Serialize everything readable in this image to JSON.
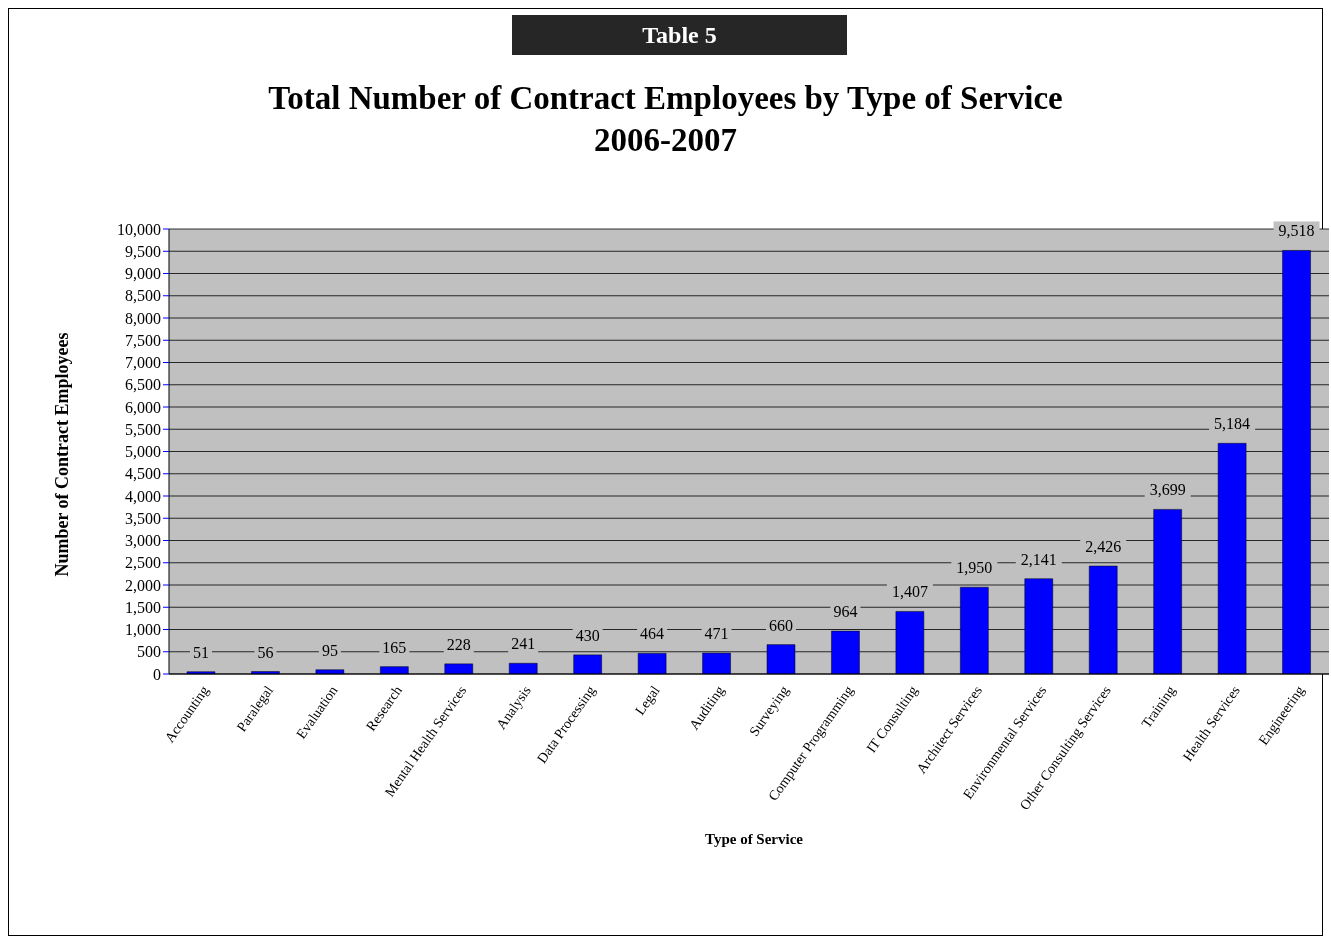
{
  "chart_data": {
    "type": "bar",
    "title": "Total Number of Contract Employees by Type of Service",
    "subtitle": "2006-2007",
    "annotations": [
      "Table 5"
    ],
    "xlabel": "Type of Service",
    "ylabel": "Number of Contract Employees",
    "categories": [
      "Accounting",
      "Paralegal",
      "Evaluation",
      "Research",
      "Mental Health Services",
      "Analysis",
      "Data Processing",
      "Legal",
      "Auditing",
      "Surveying",
      "Computer Programming",
      "IT Consulting",
      "Architect Services",
      "Environmental Services",
      "Other Consulting Services",
      "Training",
      "Health Services",
      "Engineering"
    ],
    "values": [
      51,
      56,
      95,
      165,
      228,
      241,
      430,
      464,
      471,
      660,
      964,
      1407,
      1950,
      2141,
      2426,
      3699,
      5184,
      9518
    ],
    "color": "#0000ff",
    "ylim": [
      0,
      10000
    ],
    "yticks": [
      {
        "value": 0,
        "label": "0"
      },
      {
        "value": 500,
        "label": "500"
      },
      {
        "value": 1000,
        "label": "1,000"
      },
      {
        "value": 1500,
        "label": "1,500"
      },
      {
        "value": 2000,
        "label": "2,000"
      },
      {
        "value": 2500,
        "label": "2,500"
      },
      {
        "value": 3000,
        "label": "3,000"
      },
      {
        "value": 3500,
        "label": "3,500"
      },
      {
        "value": 4000,
        "label": "4,000"
      },
      {
        "value": 4500,
        "label": "4,500"
      },
      {
        "value": 5000,
        "label": "5,000"
      },
      {
        "value": 5500,
        "label": "5,500"
      },
      {
        "value": 6000,
        "label": "6,000"
      },
      {
        "value": 6500,
        "label": "6,500"
      },
      {
        "value": 7000,
        "label": "7,000"
      },
      {
        "value": 7500,
        "label": "7,500"
      },
      {
        "value": 8000,
        "label": "8,000"
      },
      {
        "value": 8500,
        "label": "8,500"
      },
      {
        "value": 9000,
        "label": "9,000"
      },
      {
        "value": 9500,
        "label": "9,500"
      },
      {
        "value": 10000,
        "label": "10,000"
      }
    ],
    "value_labels": [
      "51",
      "56",
      "95",
      "165",
      "228",
      "241",
      "430",
      "464",
      "471",
      "660",
      "964",
      "1,407",
      "1,950",
      "2,141",
      "2,426",
      "3,699",
      "5,184",
      "9,518"
    ],
    "grid": "y"
  }
}
